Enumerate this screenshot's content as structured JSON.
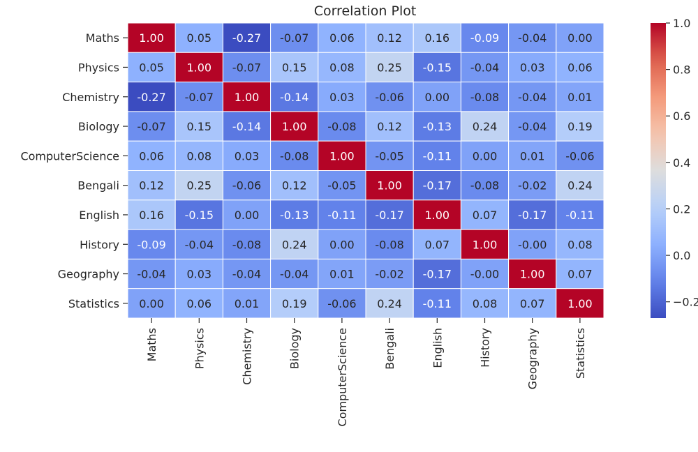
{
  "chart_data": {
    "type": "heatmap",
    "title": "Correlation Plot",
    "rows": [
      "Maths",
      "Physics",
      "Chemistry",
      "Biology",
      "ComputerScience",
      "Bengali",
      "English",
      "History",
      "Geography",
      "Statistics"
    ],
    "columns": [
      "Maths",
      "Physics",
      "Chemistry",
      "Biology",
      "ComputerScience",
      "Bengali",
      "English",
      "History",
      "Geography",
      "Statistics"
    ],
    "cells": [
      [
        "1.00",
        "0.05",
        "-0.27",
        "-0.07",
        "0.06",
        "0.12",
        "0.16",
        "-0.09",
        "-0.04",
        "0.00"
      ],
      [
        "0.05",
        "1.00",
        "-0.07",
        "0.15",
        "0.08",
        "0.25",
        "-0.15",
        "-0.04",
        "0.03",
        "0.06"
      ],
      [
        "-0.27",
        "-0.07",
        "1.00",
        "-0.14",
        "0.03",
        "-0.06",
        "0.00",
        "-0.08",
        "-0.04",
        "0.01"
      ],
      [
        "-0.07",
        "0.15",
        "-0.14",
        "1.00",
        "-0.08",
        "0.12",
        "-0.13",
        "0.24",
        "-0.04",
        "0.19"
      ],
      [
        "0.06",
        "0.08",
        "0.03",
        "-0.08",
        "1.00",
        "-0.05",
        "-0.11",
        "0.00",
        "0.01",
        "-0.06"
      ],
      [
        "0.12",
        "0.25",
        "-0.06",
        "0.12",
        "-0.05",
        "1.00",
        "-0.17",
        "-0.08",
        "-0.02",
        "0.24"
      ],
      [
        "0.16",
        "-0.15",
        "0.00",
        "-0.13",
        "-0.11",
        "-0.17",
        "1.00",
        "0.07",
        "-0.17",
        "-0.11"
      ],
      [
        "-0.09",
        "-0.04",
        "-0.08",
        "0.24",
        "0.00",
        "-0.08",
        "0.07",
        "1.00",
        "-0.00",
        "0.08"
      ],
      [
        "-0.04",
        "0.03",
        "-0.04",
        "-0.04",
        "0.01",
        "-0.02",
        "-0.17",
        "-0.00",
        "1.00",
        "0.07"
      ],
      [
        "0.00",
        "0.06",
        "0.01",
        "0.19",
        "-0.06",
        "0.24",
        "-0.11",
        "0.08",
        "0.07",
        "1.00"
      ]
    ],
    "colormap": "coolwarm",
    "vmin": -0.27,
    "vmax": 1.0,
    "colorbar_ticks": [
      "1.0",
      "0.8",
      "0.6",
      "0.4",
      "0.2",
      "0.0",
      "−0.2"
    ],
    "colorbar_tick_values": [
      1.0,
      0.8,
      0.6,
      0.4,
      0.2,
      0.0,
      -0.2
    ],
    "grid_line_color": "#ffffff"
  }
}
